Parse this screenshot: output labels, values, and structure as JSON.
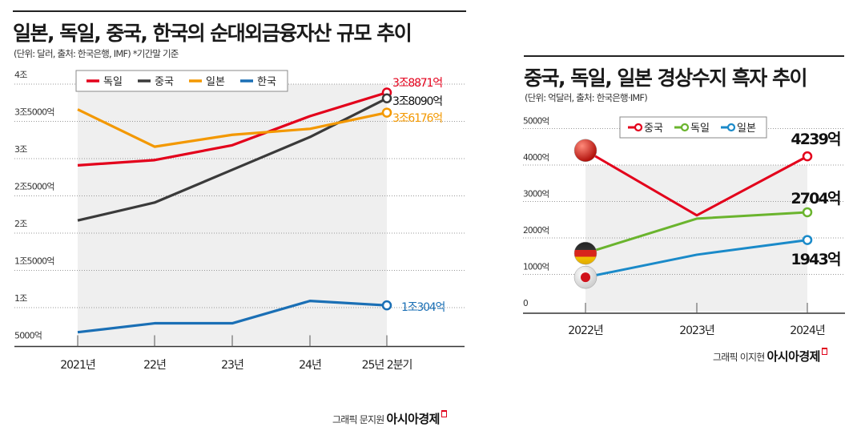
{
  "chart_data": [
    {
      "type": "line",
      "title": "일본, 독일, 중국, 한국의 순대외금융자산 규모 추이",
      "subtitle": "(단위: 달러, 출처: 한국은행, IMF)  *기간말 기준",
      "categories": [
        "2021년",
        "22년",
        "23년",
        "24년",
        "25년 2분기"
      ],
      "ylim": [
        0.5,
        4
      ],
      "yticks": [
        {
          "value": 4,
          "label": "4조"
        },
        {
          "value": 3.5,
          "label": "3조5000억"
        },
        {
          "value": 3,
          "label": "3조"
        },
        {
          "value": 2.5,
          "label": "2조5000억"
        },
        {
          "value": 2,
          "label": "2조"
        },
        {
          "value": 1.5,
          "label": "1조5000억"
        },
        {
          "value": 1,
          "label": "1조"
        },
        {
          "value": 0.5,
          "label": "5000억"
        }
      ],
      "yunit": "조 달러",
      "grid": true,
      "legend": "top",
      "series": [
        {
          "name": "독일",
          "color": "#e3001b",
          "values": [
            2.91,
            2.98,
            3.18,
            3.57,
            3.8871
          ],
          "end_label": "3조8871억"
        },
        {
          "name": "중국",
          "color": "#3a3a3a",
          "values": [
            2.17,
            2.41,
            2.85,
            3.29,
            3.809
          ],
          "end_label": "3조8090억"
        },
        {
          "name": "일본",
          "color": "#f39800",
          "values": [
            3.66,
            3.16,
            3.32,
            3.4,
            3.6176
          ],
          "end_label": "3조6176억"
        },
        {
          "name": "한국",
          "color": "#1a6fb5",
          "values": [
            0.67,
            0.79,
            0.79,
            1.09,
            1.0304
          ],
          "end_label": "1조304억"
        }
      ],
      "credit": "그래픽 문지원",
      "brand": "아시아경제"
    },
    {
      "type": "line",
      "title": "중국, 독일, 일본 경상수지 흑자 추이",
      "subtitle": "(단위: 억달러, 출처: 한국은행·IMF)",
      "categories": [
        "2022년",
        "2023년",
        "2024년"
      ],
      "ylim": [
        0,
        5000
      ],
      "yticks": [
        {
          "value": 5000,
          "label": "5000억"
        },
        {
          "value": 4000,
          "label": "4000억"
        },
        {
          "value": 3000,
          "label": "3000억"
        },
        {
          "value": 2000,
          "label": "2000억"
        },
        {
          "value": 1000,
          "label": "1000억"
        },
        {
          "value": 0,
          "label": "0"
        }
      ],
      "grid": true,
      "legend": "top",
      "series": [
        {
          "name": "중국",
          "color": "#e3001b",
          "values": [
            4400,
            2620,
            4239
          ],
          "end_label": "4239억",
          "flag": "china-flag"
        },
        {
          "name": "독일",
          "color": "#6ab42d",
          "values": [
            1580,
            2530,
            2704
          ],
          "end_label": "2704억",
          "flag": "germany-flag"
        },
        {
          "name": "일본",
          "color": "#1a8ac9",
          "values": [
            920,
            1540,
            1943
          ],
          "end_label": "1943억",
          "flag": "japan-flag"
        }
      ],
      "credit": "그래픽 이지현",
      "brand": "아시아경제"
    }
  ]
}
